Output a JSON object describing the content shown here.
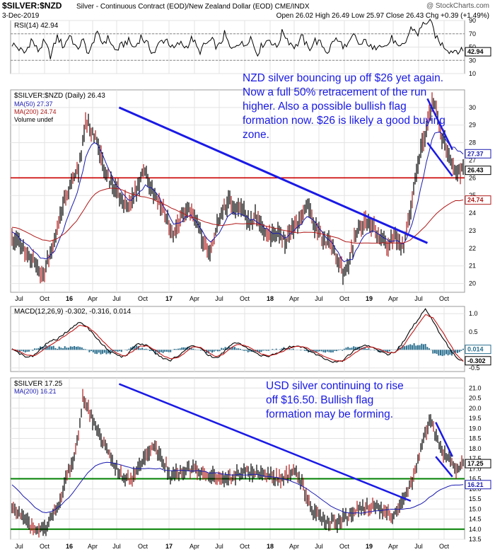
{
  "header": {
    "symbol": "$SILVER:$NZD",
    "description": "Silver - Continuous Contract (EOD)/New Zealand Dollar (EOD) CME/INDX",
    "watermark": "@ StockCharts.com",
    "date": "3-Dec-2019",
    "quote": "Open 26.02  High 26.49  Low 25.97  Close 26.43  Chg +0.39 (+1.49%)"
  },
  "colors": {
    "price": "#000000",
    "ma50": "#1a1ab0",
    "ma200": "#b01a1a",
    "trendline": "#1a1ae6",
    "support_red": "#cc0000",
    "support_green": "#008000",
    "macd_hist": "#2a6f8f",
    "annotation_text": "#1a1ae6",
    "down_candle": "#b01a1a"
  },
  "time_axis": [
    "Jul",
    "Oct",
    "16",
    "Apr",
    "Jul",
    "Oct",
    "17",
    "Apr",
    "Jul",
    "Oct",
    "18",
    "Apr",
    "Jul",
    "Oct",
    "19",
    "Apr",
    "Jul",
    "Oct"
  ],
  "chart_data": [
    {
      "type": "line",
      "panel": "rsi",
      "legend": "RSI(14) 42.94",
      "ylim": [
        10,
        90
      ],
      "y_ticks": [
        "90",
        "70",
        "50",
        "30",
        "10"
      ],
      "reference_lines": [
        70,
        30
      ],
      "last_value": "42.94",
      "series": [
        {
          "name": "RSI(14)",
          "values": [
            55,
            48,
            40,
            62,
            44,
            58,
            36,
            66,
            50,
            70,
            46,
            60,
            38,
            72,
            56,
            64,
            44,
            52,
            60,
            48,
            66,
            54,
            40,
            58,
            62,
            46,
            56,
            50,
            64,
            42,
            54,
            60,
            48,
            70,
            44,
            58,
            52,
            66,
            40,
            56,
            62,
            48,
            74,
            58,
            50,
            66,
            46,
            60,
            54,
            42,
            62,
            56,
            48,
            68,
            52,
            60,
            44,
            58,
            50,
            64,
            46,
            56,
            80,
            70,
            88,
            86,
            60,
            52,
            44,
            46,
            42.94
          ]
        }
      ]
    },
    {
      "type": "line",
      "panel": "nzd",
      "legend": {
        "price": "$SILVER:$NZD (Daily) 26.43",
        "ma50": "MA(50) 27.37",
        "ma200": "MA(200) 24.74",
        "volume": "Volume undef"
      },
      "ylim": [
        19.5,
        31
      ],
      "y_ticks": [
        "30",
        "29",
        "28",
        "27",
        "26",
        "25",
        "24",
        "23",
        "22",
        "21",
        "20"
      ],
      "badges": [
        "27.37",
        "26.43",
        "24.74"
      ],
      "support_level": 26,
      "trendline": {
        "from": [
          "Jul 2016",
          30.0
        ],
        "to": [
          "Aug 2019",
          22.3
        ]
      },
      "flag": {
        "upper": [
          [
            "Aug 2019",
            30.5
          ],
          [
            "Nov 2019",
            27.6
          ]
        ],
        "lower": [
          [
            "Aug 2019",
            28.0
          ],
          [
            "Nov 2019",
            26.1
          ]
        ]
      },
      "annotation": "NZD silver bouncing up off $26 yet again. Now a full 50% retracement of the run higher. Also a possible bullish flag formation now. $26 is likely a good buying zone.",
      "series": [
        {
          "name": "$SILVER:$NZD",
          "values": [
            22.6,
            22.2,
            21.6,
            21.2,
            20.5,
            21.4,
            22.8,
            24.6,
            25.6,
            26.4,
            29.3,
            28.6,
            27.1,
            26.0,
            25.4,
            24.7,
            24.3,
            25.6,
            26.6,
            25.1,
            24.5,
            23.4,
            22.7,
            23.9,
            24.4,
            23.3,
            22.4,
            21.8,
            23.6,
            24.6,
            24.3,
            24.1,
            23.4,
            23.8,
            22.9,
            22.7,
            23.1,
            22.3,
            23.2,
            23.6,
            24.4,
            23.1,
            22.5,
            22.1,
            21.3,
            20.5,
            22.1,
            23.2,
            23.6,
            23.0,
            22.5,
            22.3,
            22.6,
            22.1,
            24.6,
            27.1,
            28.6,
            30.4,
            28.6,
            27.2,
            26.2,
            26.43
          ]
        },
        {
          "name": "MA(50)",
          "values": [
            22.9,
            22.6,
            22.2,
            21.8,
            21.4,
            21.5,
            22.0,
            23.1,
            24.3,
            25.4,
            27.2,
            28.1,
            27.6,
            26.5,
            25.7,
            25.1,
            24.7,
            25.0,
            25.6,
            25.4,
            24.8,
            24.0,
            23.3,
            23.6,
            23.9,
            23.5,
            22.8,
            22.3,
            22.9,
            23.7,
            24.0,
            24.0,
            23.7,
            23.6,
            23.2,
            22.9,
            22.9,
            22.6,
            22.9,
            23.3,
            23.9,
            23.5,
            22.9,
            22.4,
            21.8,
            21.2,
            21.4,
            22.3,
            22.9,
            23.0,
            22.7,
            22.4,
            22.4,
            22.3,
            23.2,
            24.9,
            26.8,
            28.5,
            28.6,
            28.0,
            27.6,
            27.37
          ]
        },
        {
          "name": "MA(200)",
          "values": [
            23.2,
            23.1,
            22.9,
            22.7,
            22.5,
            22.4,
            22.5,
            22.8,
            23.2,
            23.7,
            24.4,
            25.0,
            25.3,
            25.4,
            25.4,
            25.3,
            25.1,
            25.0,
            24.9,
            24.8,
            24.6,
            24.4,
            24.2,
            24.0,
            23.8,
            23.7,
            23.5,
            23.4,
            23.3,
            23.3,
            23.4,
            23.4,
            23.4,
            23.4,
            23.3,
            23.2,
            23.1,
            23.0,
            22.9,
            22.9,
            22.9,
            22.9,
            22.8,
            22.7,
            22.6,
            22.4,
            22.3,
            22.3,
            22.3,
            22.3,
            22.3,
            22.3,
            22.3,
            22.3,
            22.5,
            22.9,
            23.3,
            23.8,
            24.2,
            24.5,
            24.7,
            24.74
          ]
        }
      ]
    },
    {
      "type": "line",
      "panel": "macd",
      "legend": "MACD(12,26,9) -0.302, -0.316, 0.014",
      "ylim": [
        -0.6,
        1.2
      ],
      "y_ticks": [
        "1.0",
        "0.5",
        "0.0",
        "-0.5"
      ],
      "badges": [
        "0.014",
        "-0.302"
      ],
      "series": [
        {
          "name": "MACD",
          "values": [
            0.05,
            -0.1,
            -0.22,
            -0.15,
            0.08,
            0.22,
            0.3,
            0.45,
            0.6,
            0.78,
            0.62,
            0.4,
            0.15,
            -0.05,
            -0.15,
            -0.2,
            0.05,
            0.18,
            0.1,
            -0.08,
            -0.22,
            -0.3,
            -0.18,
            0.0,
            0.15,
            0.05,
            -0.12,
            -0.25,
            -0.1,
            0.12,
            0.2,
            0.1,
            -0.05,
            -0.15,
            -0.2,
            -0.1,
            0.0,
            0.08,
            0.12,
            0.05,
            -0.08,
            -0.18,
            -0.28,
            -0.35,
            -0.3,
            -0.1,
            0.05,
            0.12,
            0.05,
            -0.05,
            -0.12,
            -0.05,
            0.2,
            0.55,
            0.85,
            1.12,
            0.8,
            0.4,
            0.1,
            -0.2,
            -0.302
          ]
        },
        {
          "name": "Signal",
          "values": [
            0.02,
            -0.05,
            -0.15,
            -0.16,
            -0.02,
            0.12,
            0.24,
            0.38,
            0.52,
            0.68,
            0.64,
            0.48,
            0.26,
            0.05,
            -0.1,
            -0.18,
            -0.05,
            0.1,
            0.11,
            0.0,
            -0.15,
            -0.25,
            -0.22,
            -0.08,
            0.08,
            0.07,
            -0.05,
            -0.18,
            -0.14,
            0.04,
            0.15,
            0.12,
            0.02,
            -0.1,
            -0.17,
            -0.13,
            -0.04,
            0.05,
            0.1,
            0.07,
            -0.03,
            -0.13,
            -0.22,
            -0.3,
            -0.31,
            -0.18,
            -0.03,
            0.08,
            0.07,
            0.0,
            -0.08,
            -0.07,
            0.1,
            0.4,
            0.7,
            0.98,
            0.88,
            0.58,
            0.24,
            -0.1,
            -0.316
          ]
        }
      ]
    },
    {
      "type": "line",
      "panel": "usd",
      "legend": {
        "price": "$SILVER 17.25",
        "ma200": "MA(200) 16.21"
      },
      "ylim": [
        13.5,
        21.5
      ],
      "y_ticks": [
        "21.0",
        "20.5",
        "20.0",
        "19.5",
        "19.0",
        "18.5",
        "18.0",
        "17.5",
        "17.0",
        "16.5",
        "16.0",
        "15.5",
        "15.0",
        "14.5",
        "14.0",
        "13.5"
      ],
      "badges": [
        "17.25",
        "16.21"
      ],
      "support_levels": [
        16.5,
        14.0
      ],
      "trendline": {
        "from": [
          "Jul 2016",
          21.2
        ],
        "to": [
          "Jun 2019",
          15.4
        ]
      },
      "flag": {
        "upper": [
          [
            "Sep 2019",
            19.3
          ],
          [
            "Nov 2019",
            17.6
          ]
        ],
        "lower": [
          [
            "Sep 2019",
            17.6
          ],
          [
            "Nov 2019",
            16.6
          ]
        ]
      },
      "annotation": "USD silver continuing to rise off $16.50. Bullish flag formation may be forming.",
      "series": [
        {
          "name": "$SILVER",
          "values": [
            15.2,
            14.7,
            14.3,
            14.0,
            13.9,
            14.5,
            15.3,
            16.6,
            17.6,
            20.6,
            19.7,
            18.6,
            18.0,
            17.1,
            16.6,
            16.3,
            17.1,
            17.7,
            18.1,
            17.4,
            16.6,
            16.8,
            16.9,
            17.2,
            16.7,
            16.8,
            16.4,
            16.5,
            16.6,
            16.9,
            16.8,
            16.9,
            16.6,
            16.5,
            16.4,
            16.7,
            16.8,
            15.9,
            14.9,
            14.6,
            14.4,
            14.3,
            14.6,
            14.8,
            15.0,
            15.1,
            15.1,
            14.8,
            14.6,
            15.1,
            15.8,
            17.0,
            18.5,
            19.4,
            18.0,
            17.6,
            16.9,
            17.25
          ]
        },
        {
          "name": "MA(200)",
          "values": [
            16.2,
            15.8,
            15.4,
            15.0,
            14.8,
            14.9,
            15.2,
            15.6,
            16.1,
            16.7,
            17.1,
            17.3,
            17.3,
            17.2,
            17.1,
            17.0,
            17.0,
            17.0,
            17.0,
            16.9,
            16.9,
            16.9,
            16.9,
            16.9,
            16.8,
            16.8,
            16.7,
            16.7,
            16.7,
            16.7,
            16.7,
            16.6,
            16.6,
            16.5,
            16.4,
            16.2,
            16.0,
            15.7,
            15.4,
            15.1,
            14.9,
            14.8,
            14.8,
            14.8,
            14.9,
            14.9,
            15.0,
            15.0,
            15.0,
            15.1,
            15.3,
            15.6,
            15.9,
            16.1,
            16.2,
            16.21
          ]
        }
      ]
    }
  ]
}
